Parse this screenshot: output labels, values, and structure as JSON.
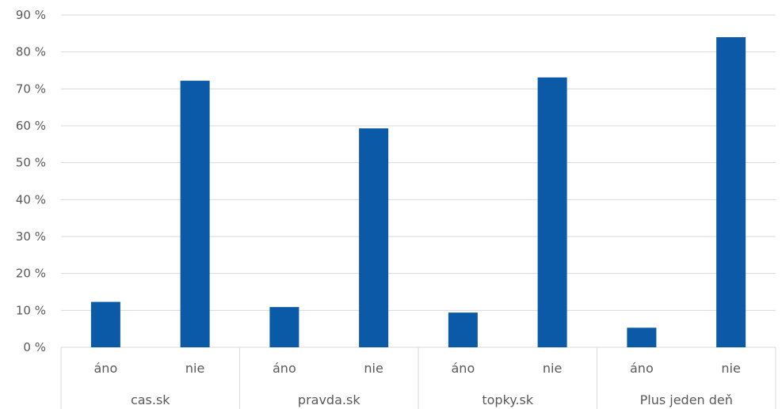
{
  "chart_data": {
    "type": "bar",
    "groups": [
      "cas.sk",
      "pravda.sk",
      "topky.sk",
      "Plus jeden deň"
    ],
    "sub_categories": [
      "áno",
      "nie"
    ],
    "values": [
      [
        12.3,
        72.2
      ],
      [
        10.9,
        59.3
      ],
      [
        9.4,
        73.1
      ],
      [
        5.3,
        84.0
      ]
    ],
    "y_ticks": [
      "0 %",
      "10 %",
      "20 %",
      "30 %",
      "40 %",
      "50 %",
      "60 %",
      "70 %",
      "80 %",
      "90 %"
    ],
    "ylim": [
      0,
      90
    ],
    "bar_color": "#0a5aa8",
    "grid": true,
    "legend": "none"
  }
}
